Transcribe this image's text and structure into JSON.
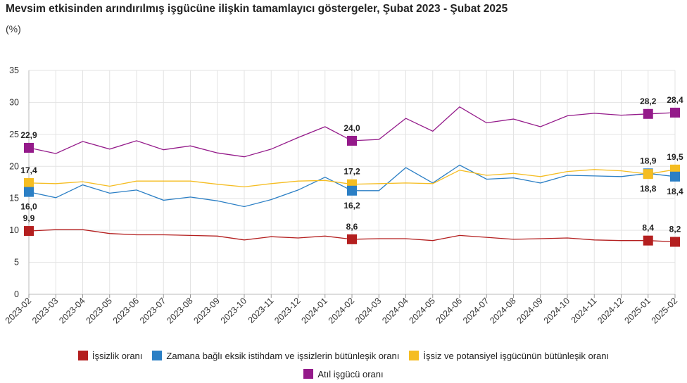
{
  "chart_data": {
    "type": "line",
    "title": "Mevsim etkisinden arındırılmış işgücüne ilişkin tamamlayıcı göstergeler, Şubat 2023 - Şubat 2025",
    "unit": "(%)",
    "ylim": [
      0,
      35
    ],
    "yticks": [
      "0",
      "5",
      "10",
      "15",
      "20",
      "25",
      "30",
      "35"
    ],
    "grid": true,
    "legend_position": "bottom",
    "categories": [
      "2023-02",
      "2023-03",
      "2023-04",
      "2023-05",
      "2023-06",
      "2023-07",
      "2023-08",
      "2023-09",
      "2023-10",
      "2023-11",
      "2023-12",
      "2024-01",
      "2024-02",
      "2024-03",
      "2024-04",
      "2024-05",
      "2024-06",
      "2024-07",
      "2024-08",
      "2024-09",
      "2024-10",
      "2024-11",
      "2024-12",
      "2025-01",
      "2025-02"
    ],
    "series": [
      {
        "name": "İşsizlik oranı",
        "color": "#b41f1f",
        "values": [
          9.9,
          10.1,
          10.1,
          9.5,
          9.3,
          9.3,
          9.2,
          9.1,
          8.5,
          9.0,
          8.8,
          9.1,
          8.6,
          8.7,
          8.7,
          8.4,
          9.2,
          8.9,
          8.6,
          8.7,
          8.8,
          8.5,
          8.4,
          8.4,
          8.2
        ]
      },
      {
        "name": "Zamana bağlı eksik istihdam ve işsizlerin bütünleşik oranı",
        "color": "#2b7fc5",
        "values": [
          16.0,
          15.1,
          17.1,
          15.8,
          16.3,
          14.7,
          15.2,
          14.6,
          13.7,
          14.8,
          16.3,
          18.3,
          16.2,
          16.2,
          19.8,
          17.4,
          20.2,
          18.0,
          18.2,
          17.4,
          18.6,
          18.5,
          18.4,
          18.9,
          18.4
        ]
      },
      {
        "name": "İşsiz ve potansiyel işgücünün bütünleşik oranı",
        "color": "#f5bd22",
        "values": [
          17.4,
          17.3,
          17.6,
          16.9,
          17.7,
          17.7,
          17.7,
          17.2,
          16.8,
          17.3,
          17.7,
          17.8,
          17.2,
          17.3,
          17.4,
          17.3,
          19.4,
          18.6,
          18.9,
          18.4,
          19.2,
          19.5,
          19.3,
          18.8,
          19.5
        ]
      },
      {
        "name": "Atıl işgücü oranı",
        "color": "#941a8a",
        "values": [
          22.9,
          22.0,
          23.9,
          22.7,
          24.0,
          22.6,
          23.2,
          22.1,
          21.5,
          22.7,
          24.5,
          26.2,
          24.0,
          24.2,
          27.5,
          25.5,
          29.3,
          26.8,
          27.4,
          26.2,
          27.9,
          28.3,
          28.0,
          28.2,
          28.4
        ]
      }
    ],
    "annotations": [
      {
        "series": 3,
        "index": 0,
        "label": "22,9",
        "pos": "above"
      },
      {
        "series": 3,
        "index": 12,
        "label": "24,0",
        "pos": "above"
      },
      {
        "series": 3,
        "index": 23,
        "label": "28,2",
        "pos": "above"
      },
      {
        "series": 3,
        "index": 24,
        "label": "28,4",
        "pos": "above"
      },
      {
        "series": 2,
        "index": 0,
        "label": "17,4",
        "pos": "above"
      },
      {
        "series": 2,
        "index": 12,
        "label": "17,2",
        "pos": "above"
      },
      {
        "series": 2,
        "index": 24,
        "label": "19,5",
        "pos": "above"
      },
      {
        "series": 1,
        "index": 0,
        "label": "16,0",
        "pos": "below"
      },
      {
        "series": 1,
        "index": 12,
        "label": "16,2",
        "pos": "below"
      },
      {
        "series": 1,
        "index": 23,
        "label": "18,9",
        "pos": "above"
      },
      {
        "series": 1,
        "index": 24,
        "label": "18,4",
        "pos": "below"
      },
      {
        "series": 2,
        "index": 23,
        "label": "18,8",
        "pos": "below"
      },
      {
        "series": 0,
        "index": 0,
        "label": "9,9",
        "pos": "above"
      },
      {
        "series": 0,
        "index": 12,
        "label": "8,6",
        "pos": "above"
      },
      {
        "series": 0,
        "index": 23,
        "label": "8,4",
        "pos": "above"
      },
      {
        "series": 0,
        "index": 24,
        "label": "8,2",
        "pos": "above"
      }
    ],
    "legend_rows": [
      [
        0,
        1,
        2
      ],
      [
        3
      ]
    ]
  }
}
